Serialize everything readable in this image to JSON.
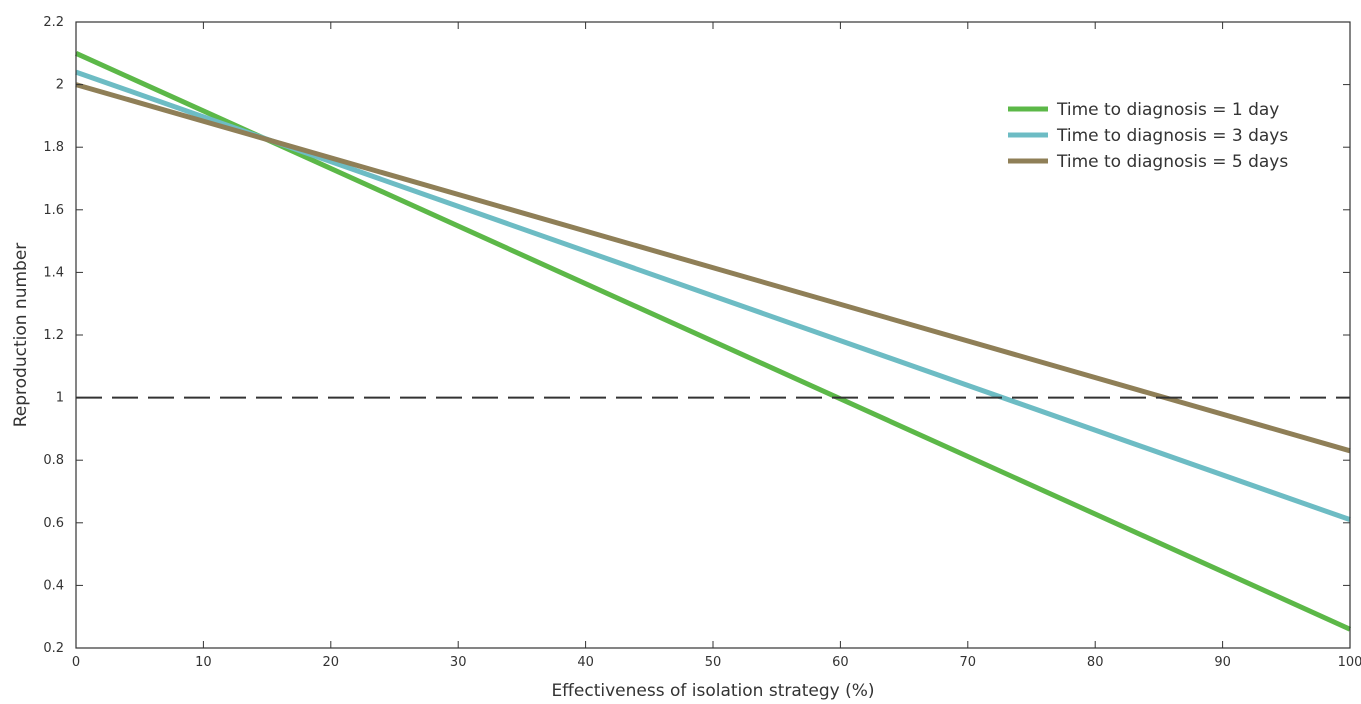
{
  "chart_data": {
    "type": "line",
    "title": "",
    "xlabel": "Effectiveness of isolation strategy (%)",
    "ylabel": "Reproduction number",
    "xlim": [
      0,
      100
    ],
    "ylim": [
      0.2,
      2.2
    ],
    "xticks": [
      0,
      10,
      20,
      30,
      40,
      50,
      60,
      70,
      80,
      90,
      100
    ],
    "yticks": [
      0.2,
      0.4,
      0.6,
      0.8,
      1,
      1.2,
      1.4,
      1.6,
      1.8,
      2,
      2.2
    ],
    "xtick_labels": [
      "0",
      "10",
      "20",
      "30",
      "40",
      "50",
      "60",
      "70",
      "80",
      "90",
      "100"
    ],
    "ytick_labels": [
      "0.2",
      "0.4",
      "0.6",
      "0.8",
      "1",
      "1.2",
      "1.4",
      "1.6",
      "1.8",
      "2",
      "2.2"
    ],
    "grid": false,
    "legend_position": "top-right",
    "series": [
      {
        "name": "Time to diagnosis = 1 day",
        "color": "#5cb848",
        "x": [
          0,
          100
        ],
        "y": [
          2.1,
          0.26
        ]
      },
      {
        "name": "Time to diagnosis = 3 days",
        "color": "#6dbcc4",
        "x": [
          0,
          100
        ],
        "y": [
          2.04,
          0.61
        ]
      },
      {
        "name": "Time to diagnosis = 5 days",
        "color": "#8f7f57",
        "x": [
          0,
          100
        ],
        "y": [
          2.0,
          0.83
        ]
      }
    ],
    "reference_line": {
      "y": 1,
      "style": "dashed",
      "color": "#333333"
    }
  }
}
